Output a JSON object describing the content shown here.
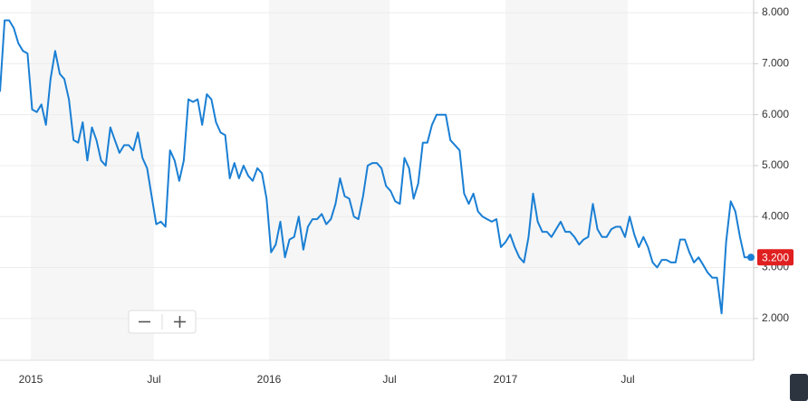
{
  "chart_data": {
    "type": "line",
    "x_labels": [
      "2015",
      "Jul",
      "2016",
      "Jul",
      "2017",
      "Jul"
    ],
    "series": [
      {
        "color": "#1a7fd4",
        "values": [
          6.45,
          7.85,
          7.85,
          7.7,
          7.4,
          7.25,
          7.2,
          6.1,
          6.05,
          6.2,
          5.8,
          6.7,
          7.25,
          6.8,
          6.7,
          6.3,
          5.5,
          5.45,
          5.85,
          5.1,
          5.75,
          5.5,
          5.1,
          5.0,
          5.75,
          5.5,
          5.25,
          5.4,
          5.4,
          5.3,
          5.65,
          5.15,
          4.95,
          4.4,
          3.85,
          3.9,
          3.8,
          5.3,
          5.1,
          4.7,
          5.1,
          6.3,
          6.25,
          6.3,
          5.8,
          6.4,
          6.3,
          5.85,
          5.65,
          5.6,
          4.75,
          5.05,
          4.75,
          5.0,
          4.8,
          4.7,
          4.95,
          4.85,
          4.35,
          3.3,
          3.45,
          3.9,
          3.2,
          3.55,
          3.6,
          4.0,
          3.35,
          3.8,
          3.95,
          3.95,
          4.05,
          3.85,
          3.95,
          4.25,
          4.75,
          4.4,
          4.35,
          4.0,
          3.95,
          4.4,
          5.0,
          5.05,
          5.05,
          4.95,
          4.6,
          4.5,
          4.3,
          4.25,
          5.15,
          4.95,
          4.35,
          4.65,
          5.45,
          5.45,
          5.8,
          6.0,
          6.0,
          6.0,
          5.5,
          5.4,
          5.3,
          4.45,
          4.25,
          4.45,
          4.1,
          4.0,
          3.95,
          3.9,
          3.95,
          3.4,
          3.5,
          3.65,
          3.4,
          3.2,
          3.1,
          3.6,
          4.45,
          3.9,
          3.7,
          3.7,
          3.6,
          3.75,
          3.9,
          3.7,
          3.7,
          3.6,
          3.45,
          3.55,
          3.6,
          4.25,
          3.75,
          3.6,
          3.6,
          3.75,
          3.8,
          3.8,
          3.6,
          4.0,
          3.65,
          3.4,
          3.6,
          3.4,
          3.1,
          3.0,
          3.15,
          3.15,
          3.1,
          3.1,
          3.55,
          3.55,
          3.3,
          3.1,
          3.2,
          3.05,
          2.9,
          2.8,
          2.8,
          2.1,
          3.5,
          4.3,
          4.1,
          3.6,
          3.2,
          3.2
        ]
      }
    ],
    "current": {
      "value": 3.2,
      "label": "3.200",
      "color": "#e02020"
    },
    "ylim": [
      1.18,
      8.25
    ],
    "yticks": [
      {
        "value": 2,
        "label": "2.000"
      },
      {
        "value": 3,
        "label": "3.000"
      },
      {
        "value": 4,
        "label": "4.000"
      },
      {
        "value": 5,
        "label": "5.000"
      },
      {
        "value": 6,
        "label": "6.000"
      },
      {
        "value": 7,
        "label": "7.000"
      },
      {
        "value": 8,
        "label": "8.000"
      }
    ],
    "grid": true
  }
}
